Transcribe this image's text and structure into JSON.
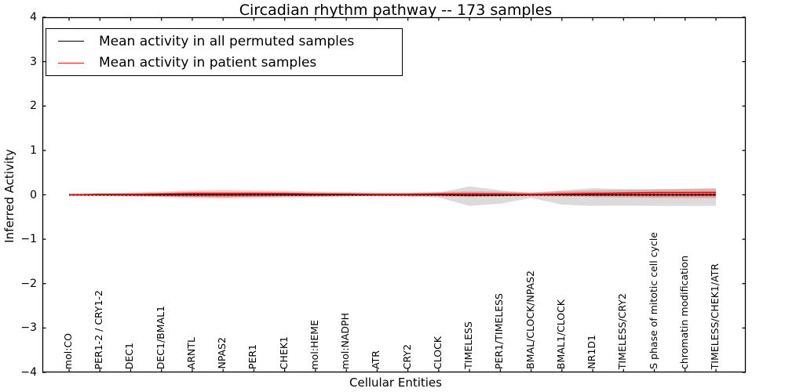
{
  "chart_data": {
    "type": "line",
    "title": "Circadian rhythm pathway -- 173 samples",
    "xlabel": "Cellular Entities",
    "ylabel": "Inferred Activity",
    "ylim": [
      -4,
      4
    ],
    "yticks": [
      {
        "value": 4,
        "label": "4"
      },
      {
        "value": 3,
        "label": "3"
      },
      {
        "value": 2,
        "label": "2"
      },
      {
        "value": 1,
        "label": "1"
      },
      {
        "value": 0,
        "label": "0"
      },
      {
        "value": -1,
        "label": "−1"
      },
      {
        "value": -2,
        "label": "−2"
      },
      {
        "value": -3,
        "label": "−3"
      },
      {
        "value": -4,
        "label": "−4"
      }
    ],
    "grid": false,
    "legend_position": "upper left",
    "categories": [
      "mol:CO",
      "PER1-2 / CRY1-2",
      "DEC1",
      "DEC1/BMAL1",
      "ARNTL",
      "NPAS2",
      "PER1",
      "CHEK1",
      "mol:HEME",
      "mol:NADPH",
      "ATR",
      "CRY2",
      "CLOCK",
      "TIMELESS",
      "PER1/TIMELESS",
      "BMAL/CLOCK/NPAS2",
      "BMAL1/CLOCK",
      "NR1D1",
      "TIMELESS/CRY2",
      "S phase of mitotic cell cycle",
      "chromatin modification",
      "TIMELESS/CHEK1/ATR"
    ],
    "series": [
      {
        "name": "Mean activity in all permuted samples",
        "color": "#000000",
        "line_style": "solid_with_dash_markers",
        "values": [
          0,
          0,
          0,
          0,
          0,
          0,
          0,
          0,
          0,
          0,
          0,
          0,
          0,
          -0.01,
          -0.01,
          0,
          0,
          0,
          0,
          0,
          0,
          0
        ]
      },
      {
        "name": "Mean activity in patient samples",
        "color": "#ff0000",
        "line_style": "solid",
        "values": [
          0,
          0.01,
          0.01,
          0.02,
          0.03,
          0.03,
          0.03,
          0.03,
          0.02,
          0.02,
          0.01,
          0.01,
          0.02,
          0.02,
          0.02,
          0.01,
          0.02,
          0.03,
          0.04,
          0.05,
          0.05,
          0.05
        ]
      }
    ],
    "bands": [
      {
        "name": "permuted-std-band",
        "color": "#999999",
        "opacity": 0.35,
        "lower": [
          -0.02,
          -0.03,
          -0.04,
          -0.04,
          -0.05,
          -0.05,
          -0.05,
          -0.04,
          -0.04,
          -0.03,
          -0.03,
          -0.04,
          -0.06,
          -0.25,
          -0.2,
          -0.07,
          -0.22,
          -0.25,
          -0.24,
          -0.25,
          -0.25,
          -0.25
        ],
        "upper": [
          0.02,
          0.03,
          0.03,
          0.04,
          0.04,
          0.04,
          0.04,
          0.04,
          0.03,
          0.03,
          0.03,
          0.04,
          0.05,
          0.19,
          0.1,
          0.05,
          0.1,
          0.15,
          0.13,
          0.13,
          0.14,
          0.15
        ]
      },
      {
        "name": "patient-std-band-outer",
        "color": "#ff0000",
        "opacity": 0.2,
        "lower": [
          -0.01,
          -0.02,
          -0.03,
          -0.05,
          -0.07,
          -0.08,
          -0.07,
          -0.06,
          -0.05,
          -0.04,
          -0.03,
          -0.03,
          -0.04,
          -0.05,
          -0.04,
          -0.03,
          -0.04,
          -0.05,
          -0.06,
          -0.07,
          -0.07,
          -0.08
        ],
        "upper": [
          0.02,
          0.04,
          0.05,
          0.07,
          0.1,
          0.11,
          0.1,
          0.09,
          0.07,
          0.06,
          0.05,
          0.05,
          0.06,
          0.08,
          0.07,
          0.05,
          0.08,
          0.1,
          0.11,
          0.12,
          0.13,
          0.14
        ]
      },
      {
        "name": "patient-std-band-inner",
        "color": "#ff0000",
        "opacity": 0.3,
        "lower": [
          -0.01,
          -0.01,
          -0.02,
          -0.03,
          -0.04,
          -0.05,
          -0.04,
          -0.03,
          -0.03,
          -0.02,
          -0.02,
          -0.02,
          -0.02,
          -0.03,
          -0.02,
          -0.02,
          -0.02,
          -0.03,
          -0.03,
          -0.04,
          -0.04,
          -0.04
        ],
        "upper": [
          0.01,
          0.02,
          0.03,
          0.04,
          0.06,
          0.06,
          0.06,
          0.05,
          0.04,
          0.03,
          0.03,
          0.03,
          0.04,
          0.05,
          0.04,
          0.03,
          0.05,
          0.06,
          0.06,
          0.07,
          0.07,
          0.08
        ]
      }
    ]
  }
}
